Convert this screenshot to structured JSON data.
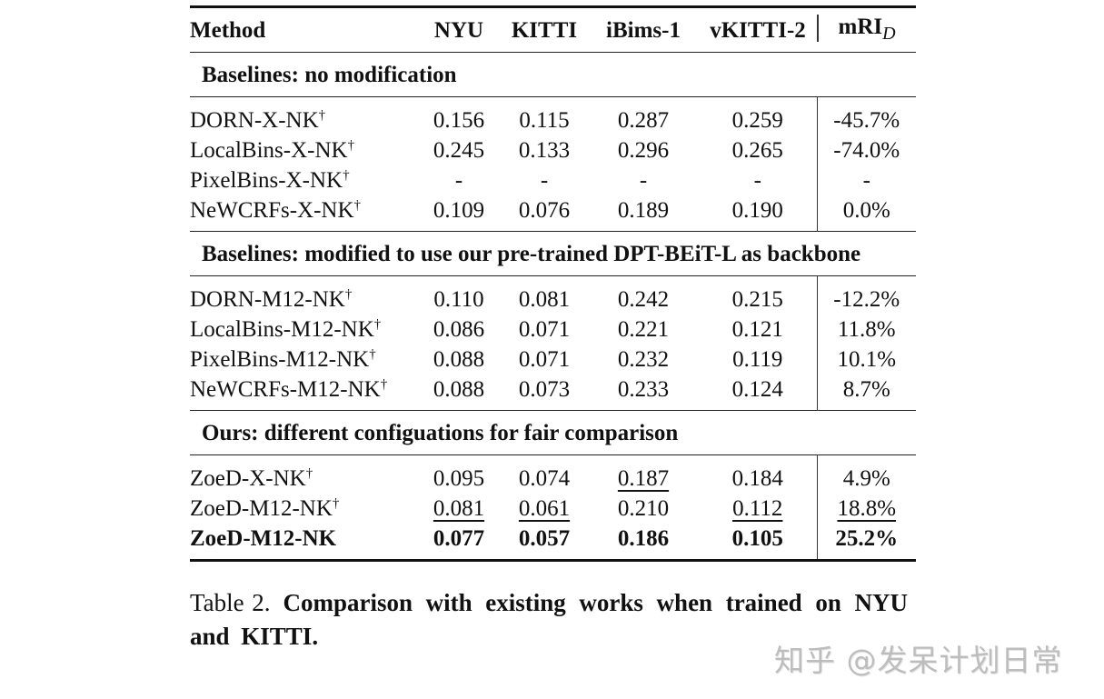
{
  "table": {
    "columns": [
      "Method",
      "NYU",
      "KITTI",
      "iBims-1",
      "vKITTI-2",
      "mRI"
    ],
    "mri_subscript": "D",
    "groups": [
      {
        "title": "Baselines: no modification",
        "rows": [
          {
            "method": "DORN-X-NK",
            "dagger": "†",
            "nyu": "0.156",
            "kitti": "0.115",
            "ibims": "0.287",
            "vkitti": "0.259",
            "mri": "-45.7%"
          },
          {
            "method": "LocalBins-X-NK",
            "dagger": "†",
            "nyu": "0.245",
            "kitti": "0.133",
            "ibims": "0.296",
            "vkitti": "0.265",
            "mri": "-74.0%"
          },
          {
            "method": "PixelBins-X-NK",
            "dagger": "†",
            "nyu": "-",
            "kitti": "-",
            "ibims": "-",
            "vkitti": "-",
            "mri": "-"
          },
          {
            "method": "NeWCRFs-X-NK",
            "dagger": "†",
            "nyu": "0.109",
            "kitti": "0.076",
            "ibims": "0.189",
            "vkitti": "0.190",
            "mri": "0.0%"
          }
        ]
      },
      {
        "title": "Baselines: modified to use our pre-trained DPT-BEiT-L as backbone",
        "rows": [
          {
            "method": "DORN-M12-NK",
            "dagger": "†",
            "nyu": "0.110",
            "kitti": "0.081",
            "ibims": "0.242",
            "vkitti": "0.215",
            "mri": "-12.2%"
          },
          {
            "method": "LocalBins-M12-NK",
            "dagger": "†",
            "nyu": "0.086",
            "kitti": "0.071",
            "ibims": "0.221",
            "vkitti": "0.121",
            "mri": "11.8%"
          },
          {
            "method": "PixelBins-M12-NK",
            "dagger": "†",
            "nyu": "0.088",
            "kitti": "0.071",
            "ibims": "0.232",
            "vkitti": "0.119",
            "mri": "10.1%"
          },
          {
            "method": "NeWCRFs-M12-NK",
            "dagger": "†",
            "nyu": "0.088",
            "kitti": "0.073",
            "ibims": "0.233",
            "vkitti": "0.124",
            "mri": "8.7%"
          }
        ]
      },
      {
        "title": "Ours: different configuations for fair comparison",
        "rows": [
          {
            "method": "ZoeD-X-NK",
            "dagger": "†",
            "nyu": "0.095",
            "kitti": "0.074",
            "ibims": "0.187",
            "vkitti": "0.184",
            "mri": "4.9%",
            "underlined": [
              "ibims"
            ]
          },
          {
            "method": "ZoeD-M12-NK",
            "dagger": "†",
            "nyu": "0.081",
            "kitti": "0.061",
            "ibims": "0.210",
            "vkitti": "0.112",
            "mri": "18.8%",
            "underlined": [
              "nyu",
              "kitti",
              "vkitti",
              "mri"
            ]
          },
          {
            "method": "ZoeD-M12-NK",
            "dagger": "",
            "nyu": "0.077",
            "kitti": "0.057",
            "ibims": "0.186",
            "vkitti": "0.105",
            "mri": "25.2%",
            "bold": true
          }
        ]
      }
    ]
  },
  "caption": {
    "label": "Table 2.",
    "text": "Comparison with existing works when trained on NYU and KITTI."
  },
  "watermark": "知乎 @发呆计划日常"
}
